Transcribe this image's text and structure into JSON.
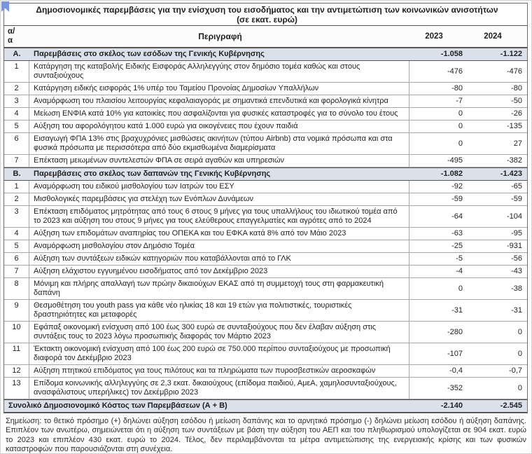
{
  "colors": {
    "accent_blue": "#7b97d9",
    "section_bg": "#dbe1ea"
  },
  "icons": {
    "bookmark": "bookmark-annotation"
  },
  "table": {
    "title_line1": "Δημοσιονομικές παρεμβάσεις για την ενίσχυση του εισοδήματος και την αντιμετώπιση των κοινωνικών ανισοτήτων",
    "title_line2": "(σε εκατ. ευρώ)",
    "header": {
      "num_line1": "α/",
      "num_line2": "α",
      "description": "Περιγραφή",
      "col2023": "2023",
      "col2024": "2024"
    },
    "sections": [
      {
        "id": "Α.",
        "label": "Παρεμβάσεις στο σκέλος των εσόδων της Γενικής Κυβέρνησης",
        "v2023": "-1.058",
        "v2024": "-1.122",
        "rows": [
          {
            "num": "1",
            "desc": "Κατάργηση της καταβολής Ειδικής Εισφοράς Αλληλεγγύης στον δημόσιο τομέα καθώς και στους συνταξιούχους",
            "v2023": "-476",
            "v2024": "-476"
          },
          {
            "num": "2",
            "desc": "Κατάργηση ειδικής εισφοράς 1% υπέρ του Ταμείου Προνοίας Δημοσίων Υπαλλήλων",
            "v2023": "-80",
            "v2024": "-80"
          },
          {
            "num": "3",
            "desc": "Αναμόρφωση του πλαισίου λειτουργίας κεφαλαιαγοράς με σημαντικά επενδυτικά και φορολογικά κίνητρα",
            "v2023": "-7",
            "v2024": "-50"
          },
          {
            "num": "4",
            "desc": "Μείωση ΕΝΦΙΑ κατά 10% για κατοικίες που ασφαλίζονται για φυσικές καταστροφές για το σύνολο του έτους",
            "v2023": "0",
            "v2024": "-26"
          },
          {
            "num": "5",
            "desc": "Αύξηση του αφορολόγητου κατά 1.000 ευρώ για οικογένειες που έχουν παιδιά",
            "v2023": "0",
            "v2024": "-135"
          },
          {
            "num": "6",
            "desc": "Εισαγωγή ΦΠΑ 13% στις βραχυχρόνιες μισθώσεις ακινήτων (τύπου Airbnb) στα νομικά πρόσωπα και στα φυσικά πρόσωπα με περισσότερα από δύο εκμισθωμένα διαμερίσματα",
            "v2023": "0",
            "v2024": "27"
          },
          {
            "num": "7",
            "desc": "Επέκταση μειωμένων συντελεστών ΦΠΑ σε σειρά αγαθών και υπηρεσιών",
            "v2023": "-495",
            "v2024": "-382"
          }
        ]
      },
      {
        "id": "Β.",
        "label": "Παρεμβάσεις στο σκέλος των δαπανών της Γενικής Κυβέρνησης",
        "v2023": "-1.082",
        "v2024": "-1.423",
        "rows": [
          {
            "num": "1",
            "desc": "Αναμόρφωση του ειδικού μισθολογίου των Ιατρών του ΕΣΥ",
            "v2023": "-92",
            "v2024": "-65"
          },
          {
            "num": "2",
            "desc": "Μισθολογικές παρεμβάσεις για στελέχη των Ενόπλων Δυνάμεων",
            "v2023": "-59",
            "v2024": "-59"
          },
          {
            "num": "3",
            "desc": "Επέκταση επιδόματος μητρότητας από τους 6 στους 9 μήνες για τους υπαλλήλους του ιδιωτικού τομέα από το 2023 και αύξηση του στους 9 μήνες για τους ελεύθερους επαγγελματίες και αγρότες από το 2024",
            "v2023": "-64",
            "v2024": "-104"
          },
          {
            "num": "4",
            "desc": "Αύξηση των επιδομάτων αναπηρίας του ΟΠΕΚΑ και του ΕΦΚΑ κατά 8% από τον Μάιο 2023",
            "v2023": "-63",
            "v2024": "-95"
          },
          {
            "num": "5",
            "desc": "Αναμόρφωση μισθολογίου στον Δημόσιο Τομέα",
            "v2023": "-25",
            "v2024": "-931"
          },
          {
            "num": "6",
            "desc": "Αύξηση των συντάξεων ειδικών κατηγοριών που καταβάλλονται από το ΓΛΚ",
            "v2023": "-5",
            "v2024": "-56"
          },
          {
            "num": "7",
            "desc": "Αύξηση ελάχιστου εγγυημένου εισοδήματος από τον Δεκέμβριο 2023",
            "v2023": "-4",
            "v2024": "-43"
          },
          {
            "num": "8",
            "desc": "Μόνιμη και πλήρης απαλλαγή των πρώην δικαιούχων ΕΚΑΣ από τη συμμετοχή τους στη φαρμακευτική δαπάνη",
            "v2023": "0",
            "v2024": "-38"
          },
          {
            "num": "9",
            "desc": "Θεσμοθέτηση του youth pass για κάθε νέο ηλικίας 18 και 19 ετών για πολιτιστικές, τουριστικές δραστηριότητες και μεταφορές",
            "v2023": "-31",
            "v2024": "-31"
          },
          {
            "num": "10",
            "desc": "Εφάπαξ οικονομική ενίσχυση από 100 έως 300 ευρώ σε συνταξιούχους που δεν έλαβαν αύξηση στις συντάξεις τους το 2023 λόγω προσωπικής διαφοράς τον Μάρτιο 2023",
            "v2023": "-280",
            "v2024": "0"
          },
          {
            "num": "11",
            "desc": "Έκτακτη οικονομική ενίσχυση από 100 έως 200 ευρώ σε 750.000 περίπου συνταξιούχους με προσωπική διαφορά τον Δεκέμβριο 2023",
            "v2023": "-107",
            "v2024": "0"
          },
          {
            "num": "12",
            "desc": "Αύξηση πτητικού επιδόματος για τους πιλότους και τα πληρώματα των πυροσβεστικών αεροσκαφών",
            "v2023": "-0,4",
            "v2024": "-0,7"
          },
          {
            "num": "13",
            "desc": "Επίδομα κοινωνικής αλληλεγγύης σε 2,3 εκατ. δικαιούχους (επίδομα παιδιού, ΑμεΑ, χαμηλοσυνταξιούχους, ανασφάλιστους υπερήλικες) τον Δεκέμβριο 2023",
            "v2023": "-352",
            "v2024": "0"
          }
        ]
      }
    ],
    "total": {
      "label": "Συνολικό Δημοσιονομικό Κόστος των Παρεμβάσεων (Α + Β)",
      "v2023": "-2.140",
      "v2024": "-2.545"
    }
  },
  "note": "Σημείωση: το θετικό πρόσημο (+) δηλώνει αύξηση εσόδου ή μείωση δαπάνης και το αρνητικό πρόσημο (-) δηλώνει μείωση εσόδου ή αύξηση δαπάνης. Επιπλέον των ανωτέρω, σημειώνεται ότι η αύξηση των συντάξεων με βάση την αύξηση του ΑΕΠ και του πληθωρισμού υπολογίζεται σε 904 εκατ. ευρώ το 2023 και επιπλέον 430 εκατ. ευρώ το 2024. Τέλος, δεν περιλαμβάνονται τα μέτρα αντιμετώπισης της ενεργειακής κρίσης και των φυσικών καταστροφών που παρουσιάζονται στη συνέχεια."
}
